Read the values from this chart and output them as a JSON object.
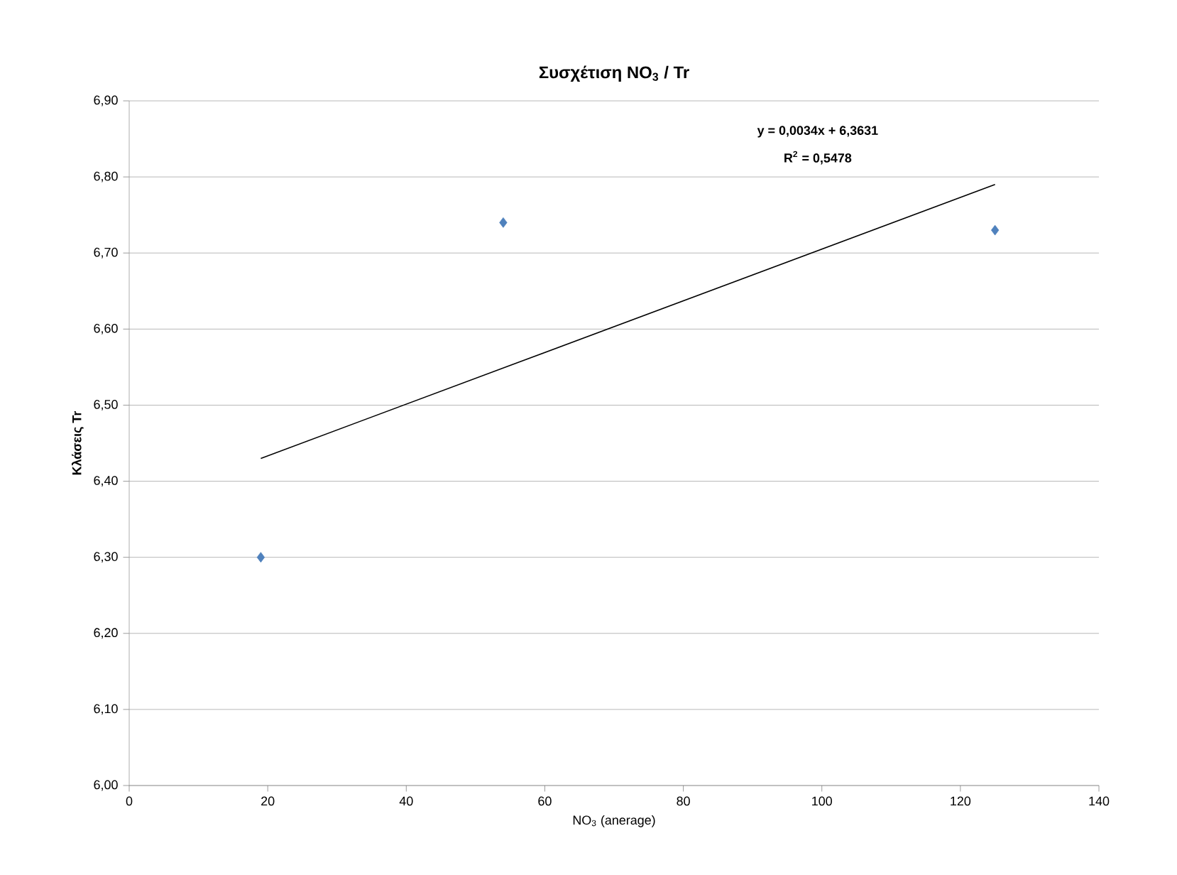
{
  "chart_data": {
    "type": "scatter",
    "title": "**Συσχέτιση NO$_{3}$ / Tr**",
    "xlabel": "NO$_{3}$ (anerage)",
    "ylabel": "**Κλάσεις Tr**",
    "annotations": [
      "y = 0,0034x + 6,3631",
      "R$^{2}$ = 0,5478"
    ],
    "series": [
      {
        "color": "#4f81bd",
        "marker": "diamond",
        "x": [
          19,
          54,
          125
        ],
        "values": [
          6.3,
          6.74,
          6.73
        ]
      },
      {
        "type": "line",
        "color": "#000000",
        "marker": "none",
        "line_style": "solid",
        "x": [
          19,
          125
        ],
        "values": [
          6.43,
          6.79
        ]
      }
    ],
    "xlim": [
      0,
      140
    ],
    "xticks": [
      0,
      20,
      40,
      60,
      80,
      100,
      120,
      140
    ],
    "ylim": [
      6.0,
      6.9
    ],
    "yticks": [
      {
        "value": 6.0,
        "label": "6,00"
      },
      {
        "value": 6.1,
        "label": "6,10"
      },
      {
        "value": 6.2,
        "label": "6,20"
      },
      {
        "value": 6.3,
        "label": "6,30"
      },
      {
        "value": 6.4,
        "label": "6,40"
      },
      {
        "value": 6.5,
        "label": "6,50"
      },
      {
        "value": 6.6,
        "label": "6,60"
      },
      {
        "value": 6.7,
        "label": "6,70"
      },
      {
        "value": 6.8,
        "label": "6,80"
      },
      {
        "value": 6.9,
        "label": "6,90"
      }
    ],
    "grid": "y"
  }
}
